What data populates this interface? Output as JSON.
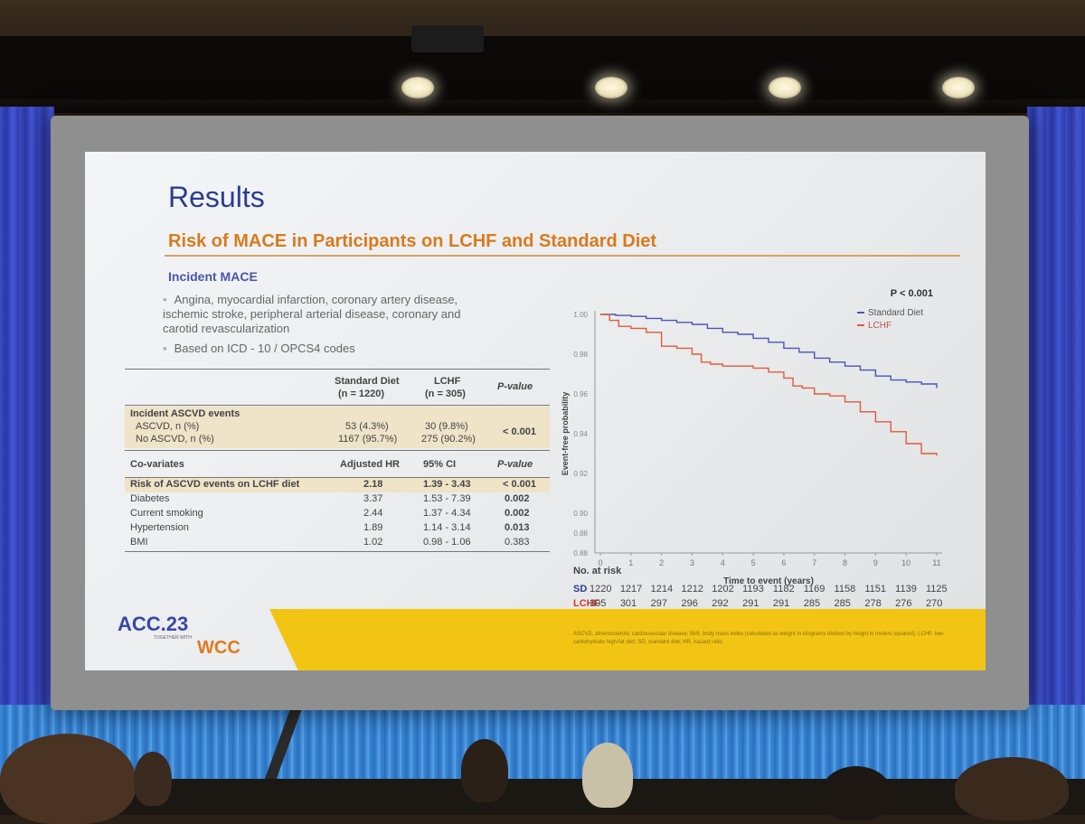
{
  "slide": {
    "title": "Results",
    "subtitle": "Risk of MACE in Participants on LCHF and Standard Diet",
    "section_heading": "Incident MACE",
    "bullets": [
      "Angina, myocardial infarction, coronary artery disease,",
      "ischemic stroke, peripheral arterial disease, coronary and",
      "carotid revascularization",
      "Based on ICD - 10 / OPCS4 codes"
    ]
  },
  "table": {
    "col_headers": {
      "standard_diet": "Standard Diet",
      "standard_diet_n": "(n = 1220)",
      "lchf": "LCHF",
      "lchf_n": "(n = 305)",
      "p_value": "P-value"
    },
    "ascvd_group_label": "Incident ASCVD events",
    "ascvd_rows": [
      {
        "label": "ASCVD, n (%)",
        "sd": "53 (4.3%)",
        "lchf": "30 (9.8%)"
      },
      {
        "label": "No ASCVD, n (%)",
        "sd": "1167 (95.7%)",
        "lchf": "275 (90.2%)"
      }
    ],
    "ascvd_p": "< 0.001",
    "covariate_headers": {
      "label": "Co-variates",
      "hr": "Adjusted HR",
      "ci": "95% CI",
      "p": "P-value"
    },
    "covariate_rows": [
      {
        "label": "Risk of ASCVD events on LCHF diet",
        "hr": "2.18",
        "ci": "1.39 - 3.43",
        "p": "< 0.001"
      },
      {
        "label": "Diabetes",
        "hr": "3.37",
        "ci": "1.53 - 7.39",
        "p": "0.002"
      },
      {
        "label": "Current smoking",
        "hr": "2.44",
        "ci": "1.37 - 4.34",
        "p": "0.002"
      },
      {
        "label": "Hypertension",
        "hr": "1.89",
        "ci": "1.14 - 3.14",
        "p": "0.013"
      },
      {
        "label": "BMI",
        "hr": "1.02",
        "ci": "0.98 - 1.06",
        "p": "0.383"
      }
    ]
  },
  "chart_data": {
    "type": "line",
    "title": "",
    "annotation": "P < 0.001",
    "xlabel": "Time to event (years)",
    "ylabel": "Event-free probability",
    "xlim": [
      0,
      11
    ],
    "ylim": [
      0.88,
      1.0
    ],
    "x_ticks": [
      "0",
      "1",
      "2",
      "3",
      "4",
      "5",
      "6",
      "7",
      "8",
      "9",
      "10",
      "11"
    ],
    "y_ticks": [
      "0.88",
      "0.88",
      "0.90",
      "0.92",
      "0.94",
      "0.96",
      "0.98",
      "1.00"
    ],
    "legend_position": "top-right",
    "series": [
      {
        "name": "Standard Diet",
        "color": "#4a55b5",
        "x": [
          0,
          0.5,
          1,
          1.5,
          2,
          2.5,
          3,
          3.5,
          4,
          4.5,
          5,
          5.5,
          6,
          6.5,
          7,
          7.5,
          8,
          8.5,
          9,
          9.5,
          10,
          10.5,
          11
        ],
        "y": [
          1.0,
          0.9995,
          0.999,
          0.998,
          0.997,
          0.996,
          0.995,
          0.993,
          0.991,
          0.99,
          0.988,
          0.986,
          0.983,
          0.981,
          0.978,
          0.976,
          0.974,
          0.972,
          0.969,
          0.967,
          0.966,
          0.965,
          0.963
        ]
      },
      {
        "name": "LCHF",
        "color": "#e05a3c",
        "x": [
          0,
          0.3,
          0.6,
          1,
          1.5,
          2,
          2.5,
          3,
          3.3,
          3.6,
          4,
          4.5,
          5,
          5.5,
          6,
          6.3,
          6.6,
          7,
          7.5,
          8,
          8.5,
          9,
          9.5,
          10,
          10.5,
          11
        ],
        "y": [
          1.0,
          0.997,
          0.994,
          0.993,
          0.991,
          0.984,
          0.983,
          0.98,
          0.976,
          0.975,
          0.974,
          0.974,
          0.973,
          0.971,
          0.968,
          0.964,
          0.963,
          0.96,
          0.959,
          0.956,
          0.951,
          0.946,
          0.941,
          0.935,
          0.93,
          0.929
        ]
      }
    ],
    "risk_table": {
      "label": "No. at risk",
      "rows": [
        {
          "name": "SD",
          "values": [
            "1220",
            "1217",
            "1214",
            "1212",
            "1202",
            "1193",
            "1182",
            "1169",
            "1158",
            "1151",
            "1139",
            "1125"
          ]
        },
        {
          "name": "LCHF",
          "values": [
            "305",
            "301",
            "297",
            "296",
            "292",
            "291",
            "291",
            "285",
            "285",
            "278",
            "276",
            "270"
          ]
        }
      ]
    }
  },
  "footer": {
    "logo_acc": "ACC.23",
    "logo_sub": "TOGETHER WITH",
    "logo_wcc": "WCC",
    "footnote": "ASCVD, atherosclerotic cardiovascular disease; BMI, body mass index (calculated as weight in kilograms divided by height in meters squared); LCHF, low-carbohydrate high-fat diet; SD, standard diet; HR, hazard ratio"
  },
  "colors": {
    "title": "#2b3d8f",
    "subtitle": "#d97a1c",
    "sd_line": "#4a55b5",
    "lchf_line": "#e05a3c",
    "yellow_band": "#f2c515"
  }
}
